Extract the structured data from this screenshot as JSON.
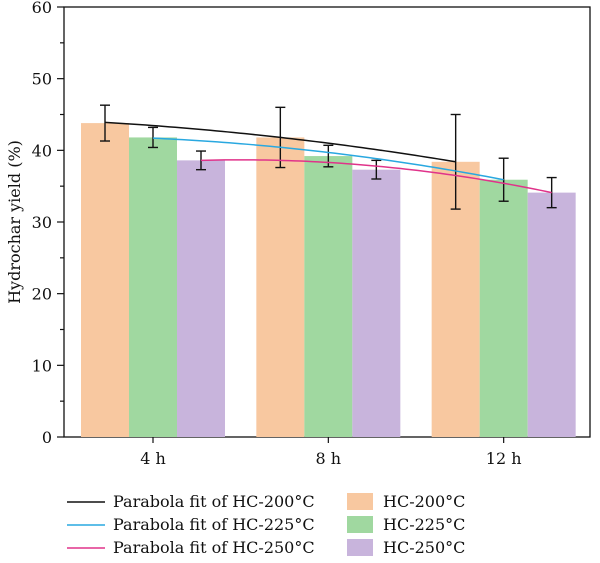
{
  "chart_data": {
    "type": "bar",
    "title": "",
    "xlabel": "",
    "ylabel": "Hydrochar yield (%)",
    "ylim": [
      0,
      60
    ],
    "yticks": [
      "0",
      "10",
      "20",
      "30",
      "40",
      "50",
      "60"
    ],
    "categories": [
      "4 h",
      "8 h",
      "12 h"
    ],
    "grid": false,
    "legend_position": "bottom",
    "series": [
      {
        "name": "HC-200°C",
        "color": "#f8c8a0",
        "values": [
          43.8,
          41.8,
          38.4
        ],
        "errors": [
          2.5,
          4.2,
          6.6
        ]
      },
      {
        "name": "HC-225°C",
        "color": "#a0d8a0",
        "values": [
          41.8,
          39.2,
          35.9
        ],
        "errors": [
          1.4,
          1.5,
          3.0
        ]
      },
      {
        "name": "HC-250°C",
        "color": "#c8b4dc",
        "values": [
          38.6,
          37.3,
          34.1
        ],
        "errors": [
          1.3,
          1.3,
          2.1
        ]
      }
    ],
    "fits": [
      {
        "name": "Parabola fit of HC-200°C",
        "color": "#111111",
        "points": [
          [
            0,
            43.9
          ],
          [
            1,
            41.8
          ],
          [
            2,
            38.4
          ]
        ]
      },
      {
        "name": "Parabola fit of HC-225°C",
        "color": "#29a8e0",
        "points": [
          [
            0,
            41.7
          ],
          [
            1,
            39.7
          ],
          [
            2,
            35.9
          ]
        ]
      },
      {
        "name": "Parabola fit of HC-250°C",
        "color": "#e0338a",
        "points": [
          [
            0,
            38.6
          ],
          [
            1,
            37.8
          ],
          [
            2,
            34.1
          ]
        ]
      }
    ]
  }
}
